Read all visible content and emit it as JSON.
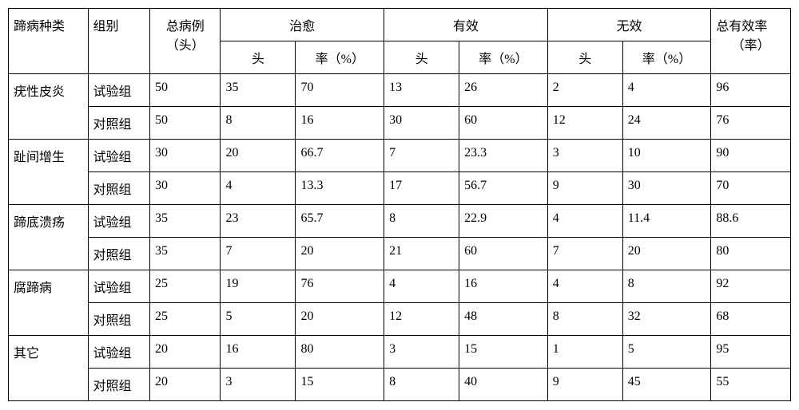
{
  "headers": {
    "disease_type": "蹄病种类",
    "group": "组别",
    "total_cases_line1": "总病例",
    "total_cases_line2": "（头）",
    "cured": "治愈",
    "effective": "有效",
    "ineffective": "无效",
    "total_eff_line1": "总有效率",
    "total_eff_line2": "（率）",
    "head": "头",
    "rate": "率（%）"
  },
  "rows": [
    {
      "type": "疣性皮炎",
      "sub": [
        {
          "group": "试验组",
          "total": "50",
          "cured_h": "35",
          "cured_r": "70",
          "eff_h": "13",
          "eff_r": "26",
          "inef_h": "2",
          "inef_r": "4",
          "total_eff": "96"
        },
        {
          "group": "对照组",
          "total": "50",
          "cured_h": "8",
          "cured_r": "16",
          "eff_h": "30",
          "eff_r": "60",
          "inef_h": "12",
          "inef_r": "24",
          "total_eff": "76"
        }
      ]
    },
    {
      "type": "趾间增生",
      "sub": [
        {
          "group": "试验组",
          "total": "30",
          "cured_h": "20",
          "cured_r": "66.7",
          "eff_h": "7",
          "eff_r": "23.3",
          "inef_h": "3",
          "inef_r": "10",
          "total_eff": "90"
        },
        {
          "group": "对照组",
          "total": "30",
          "cured_h": "4",
          "cured_r": "13.3",
          "eff_h": "17",
          "eff_r": "56.7",
          "inef_h": "9",
          "inef_r": "30",
          "total_eff": "70"
        }
      ]
    },
    {
      "type": "蹄底溃疡",
      "sub": [
        {
          "group": "试验组",
          "total": "35",
          "cured_h": "23",
          "cured_r": "65.7",
          "eff_h": "8",
          "eff_r": "22.9",
          "inef_h": "4",
          "inef_r": "11.4",
          "total_eff": "88.6"
        },
        {
          "group": "对照组",
          "total": "35",
          "cured_h": "7",
          "cured_r": "20",
          "eff_h": "21",
          "eff_r": "60",
          "inef_h": "7",
          "inef_r": "20",
          "total_eff": "80"
        }
      ]
    },
    {
      "type": "腐蹄病",
      "sub": [
        {
          "group": "试验组",
          "total": "25",
          "cured_h": "19",
          "cured_r": "76",
          "eff_h": "4",
          "eff_r": "16",
          "inef_h": "4",
          "inef_r": "8",
          "total_eff": "92"
        },
        {
          "group": "对照组",
          "total": "25",
          "cured_h": "5",
          "cured_r": "20",
          "eff_h": "12",
          "eff_r": "48",
          "inef_h": "8",
          "inef_r": "32",
          "total_eff": "68"
        }
      ]
    },
    {
      "type": "其它",
      "sub": [
        {
          "group": "试验组",
          "total": "20",
          "cured_h": "16",
          "cured_r": "80",
          "eff_h": "3",
          "eff_r": "15",
          "inef_h": "1",
          "inef_r": "5",
          "total_eff": "95"
        },
        {
          "group": "对照组",
          "total": "20",
          "cured_h": "3",
          "cured_r": "15",
          "eff_h": "8",
          "eff_r": "40",
          "inef_h": "9",
          "inef_r": "45",
          "total_eff": "55"
        }
      ]
    }
  ]
}
